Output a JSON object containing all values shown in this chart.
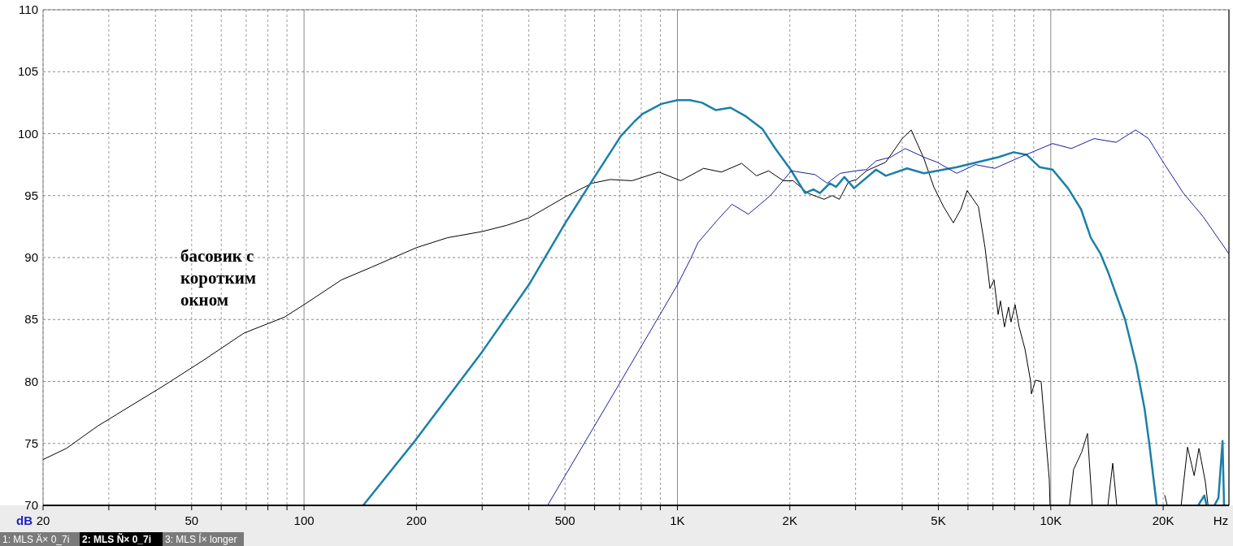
{
  "chart_data": {
    "type": "line",
    "xlabel": "Hz",
    "ylabel": "dB",
    "log": "x",
    "grid": true,
    "xlim": [
      20,
      30000
    ],
    "ylim": [
      70,
      110
    ],
    "xticks": [
      20,
      {
        "value": 30,
        "label": null
      },
      {
        "value": 40,
        "label": null
      },
      50,
      {
        "value": 60,
        "label": null
      },
      {
        "value": 70,
        "label": null
      },
      {
        "value": 80,
        "label": null
      },
      {
        "value": 90,
        "label": null
      },
      100,
      200,
      {
        "value": 300,
        "label": null
      },
      {
        "value": 400,
        "label": null
      },
      500,
      {
        "value": 600,
        "label": null
      },
      {
        "value": 700,
        "label": null
      },
      {
        "value": 800,
        "label": null
      },
      {
        "value": 900,
        "label": null
      },
      {
        "value": 1000,
        "label": "1K"
      },
      {
        "value": 2000,
        "label": "2K"
      },
      {
        "value": 3000,
        "label": null
      },
      {
        "value": 4000,
        "label": null
      },
      {
        "value": 5000,
        "label": "5K"
      },
      {
        "value": 6000,
        "label": null
      },
      {
        "value": 7000,
        "label": null
      },
      {
        "value": 8000,
        "label": null
      },
      {
        "value": 9000,
        "label": null
      },
      {
        "value": 10000,
        "label": "10K"
      },
      {
        "value": 20000,
        "label": "20K"
      }
    ],
    "yticks": [
      70,
      75,
      80,
      85,
      90,
      95,
      100,
      105,
      110
    ],
    "series": [
      {
        "color": "#000000",
        "x": [
          20,
          23.1,
          28,
          34.2,
          41.8,
          53.7,
          69,
          88.7,
          100,
          126,
          151,
          200,
          242,
          300,
          349,
          400,
          501,
          591,
          661,
          756,
          892,
          1021,
          1175,
          1312,
          1486,
          1628,
          1755,
          1922,
          2041,
          2233,
          2471,
          2596,
          2716,
          2870,
          3020,
          3206,
          3614,
          4000,
          4228,
          4572,
          4860,
          5164,
          5483,
          5742,
          5970,
          6400,
          6666,
          6872,
          7047,
          7227,
          7330,
          7516,
          7707,
          7825,
          8023,
          8226,
          8530,
          8832,
          8873,
          9100,
          9420,
          9660,
          9908,
          9954,
          10500,
          11220,
          11510,
          12100,
          12540,
          12910,
          13500,
          14220,
          14650,
          15020,
          17000,
          20190,
          20510,
          21500,
          22340,
          23240,
          24210,
          24940,
          25940,
          26370
        ],
        "values": [
          73.7,
          74.6,
          76.4,
          78.0,
          79.6,
          81.7,
          83.9,
          85.2,
          86.2,
          88.2,
          89.2,
          90.8,
          91.6,
          92.1,
          92.6,
          93.2,
          94.9,
          96.0,
          96.3,
          96.2,
          96.9,
          96.2,
          97.2,
          96.9,
          97.6,
          96.6,
          97.0,
          96.2,
          96.2,
          95.2,
          94.7,
          95.0,
          94.7,
          96.1,
          96.3,
          97.0,
          97.7,
          99.6,
          100.3,
          98.0,
          95.7,
          94.1,
          92.8,
          93.9,
          95.4,
          94.1,
          90.8,
          87.5,
          88.2,
          85.4,
          86.5,
          84.4,
          86.0,
          84.8,
          86.2,
          84.4,
          82.6,
          80.0,
          79.0,
          80.1,
          80.0,
          76.0,
          72.1,
          70,
          null,
          70,
          72.9,
          74.3,
          75.8,
          70,
          null,
          70,
          73.4,
          70,
          null,
          70.8,
          70,
          null,
          70,
          74.7,
          72.4,
          74.6,
          71.9,
          70
        ]
      },
      {
        "color": "#1a80a8",
        "x": [
          144,
          198,
          300,
          400,
          501,
          591,
          705,
          768,
          807,
          906,
          1000,
          1079,
          1164,
          1268,
          1387,
          1525,
          1687,
          1828,
          2010,
          2198,
          2312,
          2409,
          2558,
          2661,
          2800,
          2972,
          3404,
          3614,
          4121,
          4572,
          5600,
          7227,
          7946,
          8610,
          9332,
          10110,
          11120,
          12050,
          12800,
          13590,
          14290,
          15810,
          16950,
          17830,
          18370,
          19220,
          22000,
          24830,
          25770,
          26130,
          27000,
          27420,
          28120,
          28840,
          29110
        ],
        "values": [
          70,
          75.2,
          82.4,
          87.8,
          92.8,
          96.2,
          99.8,
          101.0,
          101.6,
          102.4,
          102.7,
          102.7,
          102.5,
          101.9,
          102.1,
          101.4,
          100.4,
          98.8,
          97.1,
          95.2,
          95.5,
          95.2,
          96.0,
          95.7,
          96.5,
          95.6,
          97.1,
          96.6,
          97.2,
          96.8,
          97.3,
          98.1,
          98.5,
          98.3,
          97.3,
          97.1,
          95.6,
          93.9,
          91.6,
          90.3,
          88.7,
          85.0,
          81.3,
          77.8,
          74.9,
          70,
          null,
          70,
          70.8,
          70,
          null,
          70,
          70.6,
          75.2,
          70
        ]
      },
      {
        "color": "#1c1ca0",
        "x": [
          449,
          705,
          1000,
          1089,
          1135,
          1286,
          1400,
          1549,
          1774,
          2019,
          2335,
          2518,
          2729,
          3000,
          3206,
          3404,
          3724,
          4074,
          4355,
          4572,
          4955,
          5600,
          6280,
          7080,
          8270,
          10110,
          11350,
          13060,
          14960,
          16870,
          18280,
          20190,
          22650,
          25590,
          30000
        ],
        "values": [
          70,
          80.0,
          87.8,
          90.0,
          91.2,
          93.1,
          94.3,
          93.5,
          95.0,
          97.0,
          96.7,
          96.0,
          96.8,
          97.0,
          97.1,
          97.8,
          98.1,
          98.8,
          98.4,
          98.1,
          97.7,
          96.8,
          97.5,
          97.2,
          98.1,
          99.2,
          98.8,
          99.6,
          99.3,
          100.3,
          99.6,
          97.5,
          95.2,
          93.3,
          90.3
        ]
      }
    ],
    "annotations": [
      "басовик с\nкоротким\nокном",
      "1: MLS Ä× 0_7i",
      "2: MLS Ñ× 0_7i",
      "3: MLS Í× longer"
    ]
  }
}
